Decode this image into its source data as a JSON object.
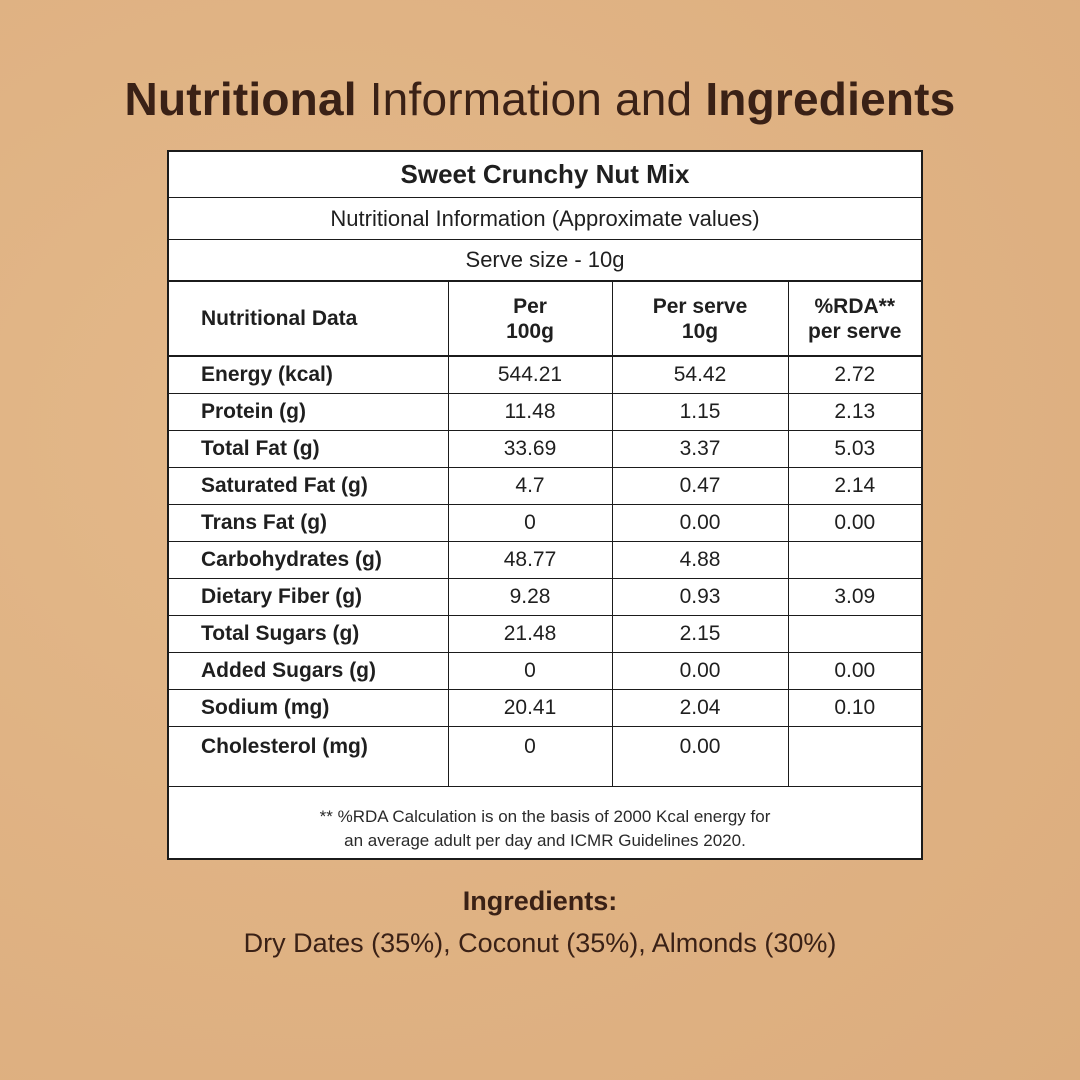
{
  "headline": {
    "part1_bold": "Nutritional",
    "part2_light": " Information and ",
    "part3_bold": "Ingredients"
  },
  "table": {
    "product_name": "Sweet Crunchy Nut Mix",
    "subtitle": "Nutritional Information (Approximate values)",
    "serve_size": "Serve size - 10g",
    "headers": {
      "col1": "Nutritional Data",
      "col2_line1": "Per",
      "col2_line2": "100g",
      "col3_line1": "Per serve",
      "col3_line2": "10g",
      "col4_line1": "%RDA**",
      "col4_line2": "per serve"
    },
    "rows": [
      {
        "label": "Energy (kcal)",
        "per100": "544.21",
        "perserve": "54.42",
        "rda": "2.72"
      },
      {
        "label": "Protein (g)",
        "per100": "11.48",
        "perserve": "1.15",
        "rda": "2.13"
      },
      {
        "label": "Total Fat (g)",
        "per100": "33.69",
        "perserve": "3.37",
        "rda": "5.03"
      },
      {
        "label": "Saturated Fat (g)",
        "per100": "4.7",
        "perserve": "0.47",
        "rda": "2.14"
      },
      {
        "label": "Trans Fat (g)",
        "per100": "0",
        "perserve": "0.00",
        "rda": "0.00"
      },
      {
        "label": "Carbohydrates (g)",
        "per100": "48.77",
        "perserve": "4.88",
        "rda": ""
      },
      {
        "label": "Dietary Fiber (g)",
        "per100": "9.28",
        "perserve": "0.93",
        "rda": "3.09"
      },
      {
        "label": "Total Sugars (g)",
        "per100": "21.48",
        "perserve": "2.15",
        "rda": ""
      },
      {
        "label": "Added Sugars (g)",
        "per100": "0",
        "perserve": "0.00",
        "rda": "0.00"
      },
      {
        "label": "Sodium (mg)",
        "per100": "20.41",
        "perserve": "2.04",
        "rda": "0.10"
      },
      {
        "label": "Cholesterol (mg)",
        "per100": "0",
        "perserve": "0.00",
        "rda": ""
      }
    ],
    "note_line1": "** %RDA Calculation is on the basis of 2000 Kcal energy for",
    "note_line2": "an average adult per day and ICMR Guidelines 2020."
  },
  "ingredients": {
    "title": "Ingredients:",
    "text": "Dry Dates (35%), Coconut (35%), Almonds (30%)"
  },
  "colors": {
    "background": "#e0b384",
    "heading": "#3a2116",
    "table_bg": "#ffffff",
    "border": "#1b1b1b"
  }
}
